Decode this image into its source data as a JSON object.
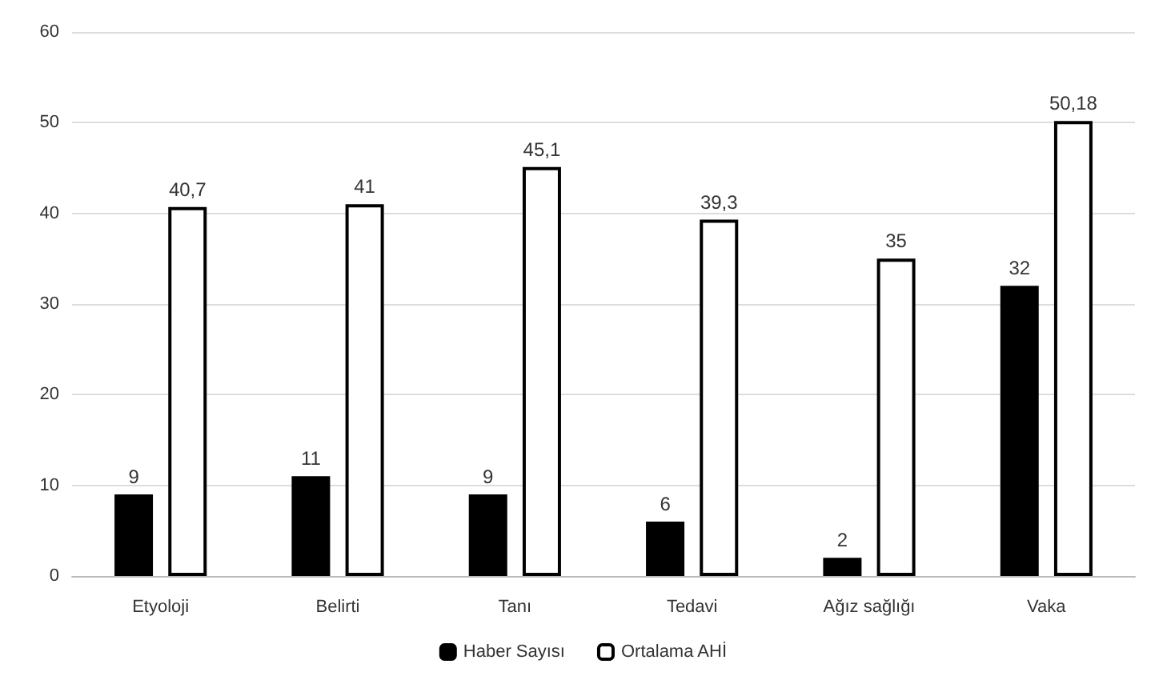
{
  "chart_data": {
    "type": "bar",
    "categories": [
      "Etyoloji",
      "Belirti",
      "Tanı",
      "Tedavi",
      "Ağız sağlığı",
      "Vaka"
    ],
    "series": [
      {
        "name": "Haber Sayısı",
        "color": "#000000",
        "values": [
          9,
          11,
          9,
          6,
          2,
          32
        ],
        "value_labels": [
          "9",
          "11",
          "9",
          "6",
          "2",
          "32"
        ]
      },
      {
        "name": "Ortalama AHİ",
        "color": "#ffffff",
        "values": [
          40.7,
          41,
          45.1,
          39.3,
          35,
          50.18
        ],
        "value_labels": [
          "40,7",
          "41",
          "45,1",
          "39,3",
          "35",
          "50,18"
        ]
      }
    ],
    "ylim": [
      0,
      60
    ],
    "yticks": [
      0,
      10,
      20,
      30,
      40,
      50,
      60
    ],
    "grid": "y",
    "legend": "bottom"
  }
}
